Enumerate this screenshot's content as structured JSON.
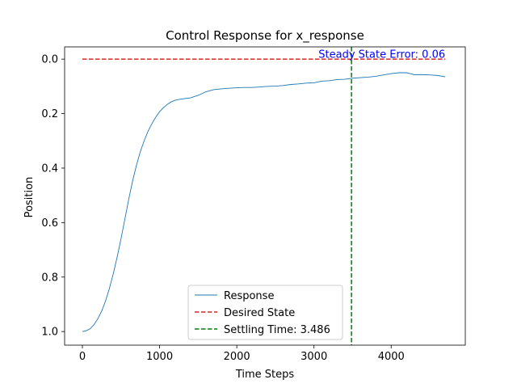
{
  "chart_data": {
    "type": "line",
    "title": "Control Response for x_response",
    "xlabel": "Time Steps",
    "ylabel": "Position",
    "xlim": [
      -230,
      4960
    ],
    "ylim": [
      1.05,
      -0.045
    ],
    "y_inverted": true,
    "xticks": [
      0,
      1000,
      2000,
      3000,
      4000
    ],
    "yticks": [
      0.0,
      0.2,
      0.4,
      0.6,
      0.8,
      1.0
    ],
    "ytick_labels": [
      "0.0",
      "0.2",
      "0.4",
      "0.6",
      "0.8",
      "1.0"
    ],
    "grid": false,
    "legend_position": "lower center",
    "series": [
      {
        "name": "Response",
        "color": "#1f77b4",
        "style": "solid",
        "x": [
          0,
          50,
          100,
          150,
          200,
          250,
          300,
          350,
          400,
          450,
          500,
          550,
          600,
          650,
          700,
          750,
          800,
          850,
          900,
          950,
          1000,
          1050,
          1100,
          1150,
          1200,
          1250,
          1300,
          1400,
          1500,
          1600,
          1700,
          1800,
          1900,
          2000,
          2100,
          2200,
          2300,
          2400,
          2500,
          2600,
          2700,
          2800,
          2900,
          3000,
          3100,
          3200,
          3300,
          3400,
          3500,
          3600,
          3700,
          3800,
          3900,
          4000,
          4100,
          4200,
          4300,
          4400,
          4500,
          4600,
          4700
        ],
        "y": [
          1.0,
          0.997,
          0.99,
          0.975,
          0.953,
          0.925,
          0.888,
          0.842,
          0.788,
          0.727,
          0.66,
          0.588,
          0.515,
          0.448,
          0.39,
          0.34,
          0.3,
          0.265,
          0.237,
          0.213,
          0.193,
          0.178,
          0.166,
          0.157,
          0.151,
          0.148,
          0.146,
          0.142,
          0.133,
          0.12,
          0.112,
          0.109,
          0.107,
          0.105,
          0.104,
          0.104,
          0.102,
          0.1,
          0.099,
          0.097,
          0.093,
          0.091,
          0.088,
          0.087,
          0.081,
          0.079,
          0.075,
          0.074,
          0.07,
          0.068,
          0.066,
          0.063,
          0.058,
          0.053,
          0.05,
          0.05,
          0.057,
          0.057,
          0.058,
          0.06,
          0.065
        ]
      },
      {
        "name": "Desired State",
        "color": "#d62728",
        "style": "dashed",
        "x": [
          0,
          4700
        ],
        "y": [
          0.0,
          0.0
        ]
      }
    ],
    "vline": {
      "name": "Settling Time: 3.486",
      "x": 3486,
      "color": "#008000",
      "style": "dashed"
    },
    "annotation": {
      "text": "Steady State Error: 0.06",
      "x": 4700,
      "y": -0.005,
      "color": "#0000ff"
    },
    "legend": [
      {
        "label": "Response",
        "color": "#1f77b4",
        "style": "solid"
      },
      {
        "label": "Desired State",
        "color": "#d62728",
        "style": "dashed"
      },
      {
        "label": "Settling Time: 3.486",
        "color": "#008000",
        "style": "dashed"
      }
    ]
  }
}
